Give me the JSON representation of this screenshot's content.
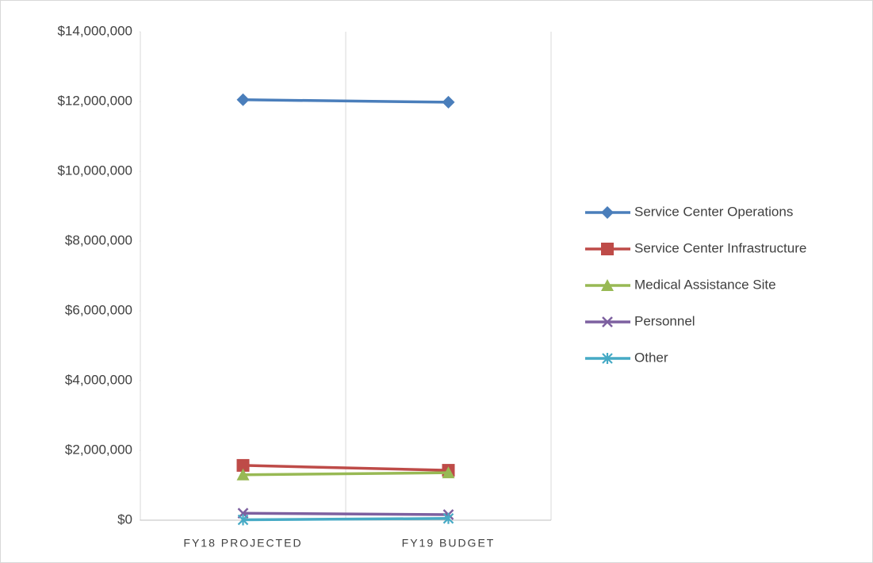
{
  "chart_data": {
    "type": "line",
    "categories": [
      "FY18 PROJECTED",
      "FY19 BUDGET"
    ],
    "series": [
      {
        "name": "Service Center Operations",
        "color": "#4a7ebb",
        "marker": "diamond",
        "values": [
          12050000,
          11980000
        ]
      },
      {
        "name": "Service Center Infrastructure",
        "color": "#be4b48",
        "marker": "square",
        "values": [
          1570000,
          1430000
        ]
      },
      {
        "name": "Medical Assistance Site",
        "color": "#98b954",
        "marker": "triangle",
        "values": [
          1300000,
          1360000
        ]
      },
      {
        "name": "Personnel",
        "color": "#7d60a0",
        "marker": "x",
        "values": [
          200000,
          160000
        ]
      },
      {
        "name": "Other",
        "color": "#46aac5",
        "marker": "asterisk",
        "values": [
          10000,
          50000
        ]
      }
    ],
    "ylim": [
      0,
      14000000
    ],
    "yticks": [
      {
        "value": 0,
        "label": "$0"
      },
      {
        "value": 2000000,
        "label": "$2,000,000"
      },
      {
        "value": 4000000,
        "label": "$4,000,000"
      },
      {
        "value": 6000000,
        "label": "$6,000,000"
      },
      {
        "value": 8000000,
        "label": "$8,000,000"
      },
      {
        "value": 10000000,
        "label": "$10,000,000"
      },
      {
        "value": 12000000,
        "label": "$12,000,000"
      },
      {
        "value": 14000000,
        "label": "$14,000,000"
      }
    ],
    "grid": "vertical",
    "legend": "right"
  }
}
